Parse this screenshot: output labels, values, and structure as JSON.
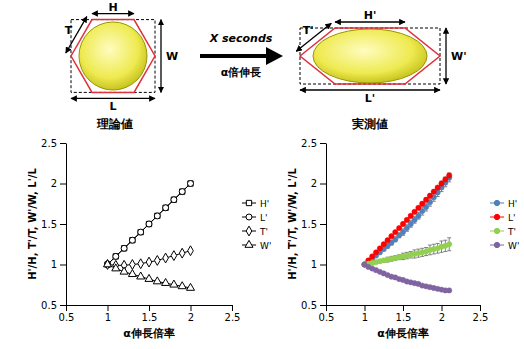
{
  "diagram": {
    "before_labels": [
      "H",
      "T",
      "W",
      "L"
    ],
    "after_labels": [
      "H'",
      "T'",
      "W'",
      "L'"
    ],
    "arrow_top": "X seconds",
    "arrow_bottom": "α倍伸長"
  },
  "chart_data": [
    {
      "type": "line",
      "title": "理論値",
      "x_label": "α伸長倍率",
      "y_label": "H'/H, T'/T, W'/W, L'/L",
      "x": [
        1,
        1.1,
        1.2,
        1.3,
        1.4,
        1.5,
        1.6,
        1.7,
        1.8,
        1.9,
        2
      ],
      "series": [
        {
          "name": "H'",
          "color": "#000000",
          "marker": "square",
          "values": [
            1,
            1.1,
            1.2,
            1.3,
            1.4,
            1.5,
            1.6,
            1.7,
            1.8,
            1.9,
            2
          ]
        },
        {
          "name": "L'",
          "color": "#000000",
          "marker": "circle",
          "values": [
            1,
            1.1,
            1.2,
            1.3,
            1.4,
            1.5,
            1.6,
            1.7,
            1.8,
            1.9,
            2
          ]
        },
        {
          "name": "T'",
          "color": "#000000",
          "marker": "diamond",
          "values": [
            1,
            0.99,
            0.99,
            1,
            1.01,
            1.03,
            1.05,
            1.08,
            1.11,
            1.14,
            1.17
          ]
        },
        {
          "name": "W'",
          "color": "#000000",
          "marker": "triangle",
          "values": [
            1,
            0.95,
            0.91,
            0.88,
            0.85,
            0.82,
            0.79,
            0.77,
            0.75,
            0.73,
            0.71
          ]
        }
      ],
      "xlim": [
        0.5,
        2.5
      ],
      "xticks": [
        0.5,
        1,
        1.5,
        2,
        2.5
      ],
      "ylim": [
        0.5,
        2.5
      ],
      "yticks": [
        0.5,
        1,
        1.5,
        2,
        2.5
      ],
      "grid": false,
      "legend": "right"
    },
    {
      "type": "line",
      "title": "実測値",
      "x_label": "α伸長倍率",
      "y_label": "H'/H, T'/T, W'/W, L'/L",
      "x": [
        1,
        1.05,
        1.1,
        1.15,
        1.2,
        1.25,
        1.3,
        1.35,
        1.4,
        1.45,
        1.5,
        1.55,
        1.6,
        1.65,
        1.7,
        1.75,
        1.8,
        1.85,
        1.9,
        1.95,
        2,
        2.05,
        2.1
      ],
      "series": [
        {
          "name": "H'",
          "color": "#4f81bd",
          "marker": "circle",
          "values": [
            1,
            1.03,
            1.07,
            1.11,
            1.15,
            1.19,
            1.23,
            1.27,
            1.31,
            1.36,
            1.4,
            1.45,
            1.5,
            1.55,
            1.6,
            1.66,
            1.71,
            1.77,
            1.83,
            1.89,
            1.95,
            2.01,
            2.07
          ],
          "errors": [
            0,
            0.01,
            0.01,
            0.02,
            0.02,
            0.02,
            0.03,
            0.03,
            0.03,
            0.03,
            0.04,
            0.04,
            0.04,
            0.04,
            0.04,
            0.05,
            0.05,
            0.05,
            0.05,
            0.05,
            0.05,
            0.05,
            0.05
          ]
        },
        {
          "name": "L'",
          "color": "#ff0000",
          "marker": "circle",
          "values": [
            1,
            1.05,
            1.1,
            1.15,
            1.2,
            1.25,
            1.3,
            1.35,
            1.4,
            1.45,
            1.5,
            1.55,
            1.6,
            1.65,
            1.7,
            1.75,
            1.8,
            1.85,
            1.9,
            1.95,
            2,
            2.05,
            2.1
          ],
          "errors": [
            0,
            0.01,
            0.01,
            0.01,
            0.01,
            0.01,
            0.01,
            0.01,
            0.01,
            0.01,
            0.02,
            0.02,
            0.02,
            0.02,
            0.02,
            0.02,
            0.02,
            0.02,
            0.02,
            0.02,
            0.03,
            0.03,
            0.03
          ]
        },
        {
          "name": "T'",
          "color": "#92d050",
          "marker": "circle",
          "values": [
            1,
            1.01,
            1.02,
            1.03,
            1.04,
            1.05,
            1.06,
            1.07,
            1.08,
            1.09,
            1.1,
            1.11,
            1.12,
            1.13,
            1.14,
            1.15,
            1.16,
            1.18,
            1.19,
            1.2,
            1.22,
            1.23,
            1.25
          ],
          "errors": [
            0,
            0.01,
            0.01,
            0.02,
            0.02,
            0.02,
            0.03,
            0.03,
            0.03,
            0.03,
            0.04,
            0.04,
            0.04,
            0.05,
            0.05,
            0.05,
            0.05,
            0.06,
            0.06,
            0.06,
            0.07,
            0.07,
            0.08
          ]
        },
        {
          "name": "W'",
          "color": "#8064a2",
          "marker": "circle",
          "values": [
            1,
            0.97,
            0.95,
            0.93,
            0.91,
            0.89,
            0.87,
            0.85,
            0.84,
            0.82,
            0.81,
            0.79,
            0.78,
            0.77,
            0.76,
            0.74,
            0.73,
            0.72,
            0.71,
            0.7,
            0.69,
            0.68,
            0.68
          ],
          "errors": [
            0,
            0.01,
            0.01,
            0.01,
            0.01,
            0.01,
            0.01,
            0.01,
            0.01,
            0.01,
            0.01,
            0.01,
            0.01,
            0.01,
            0.01,
            0.01,
            0.01,
            0.01,
            0.01,
            0.01,
            0.01,
            0.01,
            0.01
          ]
        }
      ],
      "xlim": [
        0.5,
        2.5
      ],
      "xticks": [
        0.5,
        1,
        1.5,
        2,
        2.5
      ],
      "ylim": [
        0.5,
        2.5
      ],
      "yticks": [
        0.5,
        1,
        1.5,
        2,
        2.5
      ],
      "grid": false,
      "legend": "right"
    }
  ]
}
